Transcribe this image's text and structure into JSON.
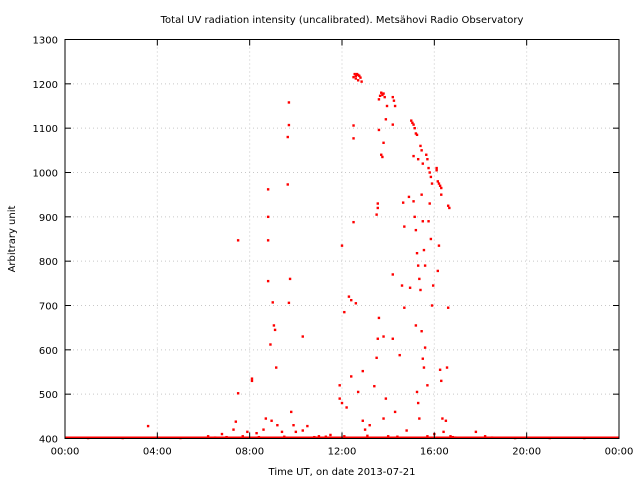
{
  "chart_data": {
    "type": "scatter",
    "title": "Total UV radiation intensity (uncalibrated). Metsähovi Radio Observatory",
    "xlabel": "Time UT, on date 2013-07-21",
    "ylabel": "Arbitrary unit",
    "xlim": [
      0,
      24
    ],
    "ylim": [
      400,
      1300
    ],
    "x_ticks": [
      0,
      4,
      8,
      12,
      16,
      20,
      24
    ],
    "x_tick_labels": [
      "00:00",
      "04:00",
      "08:00",
      "12:00",
      "16:00",
      "20:00",
      "00:00"
    ],
    "y_ticks": [
      400,
      500,
      600,
      700,
      800,
      900,
      1000,
      1100,
      1200,
      1300
    ],
    "y_tick_labels": [
      "400",
      "500",
      "600",
      "700",
      "800",
      "900",
      "1000",
      "1100",
      "1200",
      "1300"
    ],
    "grid": true,
    "marker_color": "#ff0000",
    "baseline": {
      "value": 400,
      "from": 0,
      "to": 24
    },
    "points": [
      [
        3.6,
        428
      ],
      [
        6.2,
        405
      ],
      [
        6.8,
        410
      ],
      [
        7.3,
        420
      ],
      [
        7.5,
        847
      ],
      [
        7.5,
        502
      ],
      [
        7.4,
        438
      ],
      [
        8.1,
        535
      ],
      [
        8.1,
        530
      ],
      [
        7.9,
        415
      ],
      [
        8.3,
        412
      ],
      [
        8.6,
        420
      ],
      [
        8.7,
        445
      ],
      [
        8.8,
        962
      ],
      [
        8.8,
        900
      ],
      [
        8.8,
        847
      ],
      [
        8.8,
        755
      ],
      [
        8.9,
        612
      ],
      [
        8.95,
        440
      ],
      [
        9.0,
        707
      ],
      [
        9.05,
        655
      ],
      [
        9.1,
        645
      ],
      [
        9.15,
        560
      ],
      [
        9.2,
        430
      ],
      [
        9.4,
        415
      ],
      [
        9.7,
        1158
      ],
      [
        9.7,
        1107
      ],
      [
        9.65,
        1080
      ],
      [
        9.65,
        973
      ],
      [
        9.7,
        706
      ],
      [
        9.75,
        760
      ],
      [
        9.8,
        460
      ],
      [
        9.9,
        430
      ],
      [
        10.0,
        415
      ],
      [
        10.3,
        630
      ],
      [
        10.5,
        428
      ],
      [
        10.3,
        418
      ],
      [
        11.0,
        405
      ],
      [
        11.5,
        408
      ],
      [
        11.9,
        520
      ],
      [
        11.9,
        490
      ],
      [
        12.0,
        835
      ],
      [
        12.0,
        480
      ],
      [
        12.1,
        685
      ],
      [
        12.2,
        470
      ],
      [
        12.3,
        720
      ],
      [
        12.4,
        712
      ],
      [
        12.5,
        888
      ],
      [
        12.5,
        1106
      ],
      [
        12.5,
        1077
      ],
      [
        12.6,
        705
      ],
      [
        12.7,
        505
      ],
      [
        12.4,
        540
      ],
      [
        12.5,
        1215
      ],
      [
        12.55,
        1222
      ],
      [
        12.6,
        1218
      ],
      [
        12.65,
        1222
      ],
      [
        12.7,
        1220
      ],
      [
        12.75,
        1218
      ],
      [
        12.8,
        1214
      ],
      [
        12.85,
        1205
      ],
      [
        12.6,
        1212
      ],
      [
        12.7,
        1208
      ],
      [
        12.9,
        552
      ],
      [
        12.9,
        440
      ],
      [
        13.0,
        420
      ],
      [
        13.2,
        430
      ],
      [
        13.4,
        518
      ],
      [
        13.5,
        582
      ],
      [
        13.55,
        625
      ],
      [
        13.6,
        672
      ],
      [
        13.6,
        1165
      ],
      [
        13.65,
        1173
      ],
      [
        13.7,
        1180
      ],
      [
        13.75,
        1175
      ],
      [
        13.8,
        1178
      ],
      [
        13.85,
        1170
      ],
      [
        13.6,
        1096
      ],
      [
        13.55,
        930
      ],
      [
        13.5,
        905
      ],
      [
        13.55,
        920
      ],
      [
        13.7,
        1040
      ],
      [
        13.75,
        1035
      ],
      [
        13.8,
        1067
      ],
      [
        13.9,
        1120
      ],
      [
        13.95,
        1150
      ],
      [
        13.8,
        630
      ],
      [
        13.9,
        490
      ],
      [
        13.8,
        445
      ],
      [
        14.2,
        1170
      ],
      [
        14.25,
        1162
      ],
      [
        14.3,
        1150
      ],
      [
        14.2,
        1108
      ],
      [
        14.2,
        770
      ],
      [
        14.2,
        625
      ],
      [
        14.3,
        460
      ],
      [
        14.5,
        588
      ],
      [
        14.6,
        745
      ],
      [
        14.65,
        932
      ],
      [
        14.7,
        878
      ],
      [
        14.7,
        695
      ],
      [
        14.8,
        418
      ],
      [
        14.9,
        945
      ],
      [
        14.95,
        740
      ],
      [
        15.0,
        1117
      ],
      [
        15.05,
        1112
      ],
      [
        15.1,
        1108
      ],
      [
        15.15,
        1100
      ],
      [
        15.2,
        1088
      ],
      [
        15.25,
        1085
      ],
      [
        15.3,
        1030
      ],
      [
        15.1,
        1037
      ],
      [
        15.1,
        935
      ],
      [
        15.15,
        900
      ],
      [
        15.2,
        870
      ],
      [
        15.25,
        818
      ],
      [
        15.3,
        790
      ],
      [
        15.35,
        760
      ],
      [
        15.4,
        735
      ],
      [
        15.2,
        655
      ],
      [
        15.25,
        505
      ],
      [
        15.3,
        480
      ],
      [
        15.35,
        445
      ],
      [
        15.4,
        1060
      ],
      [
        15.45,
        1050
      ],
      [
        15.5,
        1020
      ],
      [
        15.45,
        950
      ],
      [
        15.5,
        890
      ],
      [
        15.55,
        825
      ],
      [
        15.6,
        790
      ],
      [
        15.45,
        642
      ],
      [
        15.5,
        580
      ],
      [
        15.55,
        560
      ],
      [
        15.6,
        605
      ],
      [
        15.7,
        520
      ],
      [
        15.65,
        1040
      ],
      [
        15.7,
        1030
      ],
      [
        15.75,
        1010
      ],
      [
        15.8,
        1000
      ],
      [
        15.85,
        990
      ],
      [
        15.9,
        975
      ],
      [
        15.75,
        890
      ],
      [
        15.8,
        930
      ],
      [
        15.85,
        850
      ],
      [
        15.9,
        700
      ],
      [
        15.95,
        745
      ],
      [
        16.0,
        410
      ],
      [
        16.1,
        1010
      ],
      [
        16.15,
        980
      ],
      [
        16.2,
        975
      ],
      [
        16.25,
        970
      ],
      [
        16.3,
        965
      ],
      [
        16.3,
        950
      ],
      [
        16.1,
        1005
      ],
      [
        16.2,
        835
      ],
      [
        16.15,
        778
      ],
      [
        16.25,
        555
      ],
      [
        16.3,
        530
      ],
      [
        16.35,
        445
      ],
      [
        16.6,
        925
      ],
      [
        16.65,
        920
      ],
      [
        16.6,
        695
      ],
      [
        16.55,
        560
      ],
      [
        16.5,
        440
      ],
      [
        16.4,
        415
      ],
      [
        16.7,
        405
      ],
      [
        16.9,
        402
      ],
      [
        17.8,
        415
      ],
      [
        18.2,
        405
      ],
      [
        18.5,
        402
      ],
      [
        6.5,
        402
      ],
      [
        7.0,
        403
      ],
      [
        7.7,
        405
      ],
      [
        8.4,
        403
      ],
      [
        9.5,
        404
      ],
      [
        10.8,
        403
      ],
      [
        11.3,
        404
      ],
      [
        12.1,
        405
      ],
      [
        13.1,
        406
      ],
      [
        14.0,
        405
      ],
      [
        14.4,
        404
      ],
      [
        15.7,
        405
      ],
      [
        16.8,
        403
      ],
      [
        1.0,
        401
      ],
      [
        2.5,
        401
      ],
      [
        5.0,
        401
      ],
      [
        19.5,
        401
      ],
      [
        21.0,
        401
      ],
      [
        22.5,
        401
      ]
    ]
  }
}
